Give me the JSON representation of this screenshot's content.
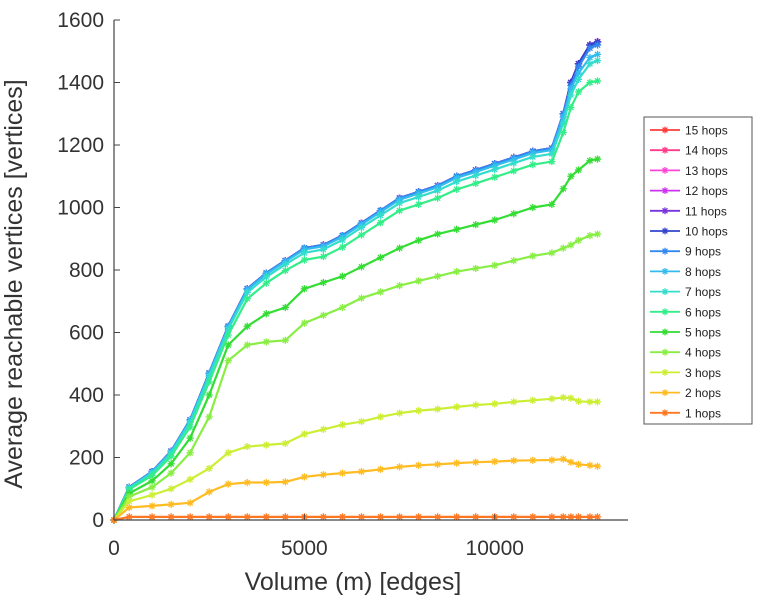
{
  "chart_data": {
    "type": "line",
    "title": "",
    "xlabel": "Volume (m) [edges]",
    "ylabel": "Average reachable vertices [vertices]",
    "xlim": [
      0,
      13500
    ],
    "ylim": [
      0,
      1600
    ],
    "xticks": [
      0,
      5000,
      10000
    ],
    "yticks": [
      0,
      200,
      400,
      600,
      800,
      1000,
      1200,
      1400,
      1600
    ],
    "grid": false,
    "legend_position": "right",
    "x": [
      0,
      400,
      1000,
      1500,
      2000,
      2500,
      3000,
      3500,
      4000,
      4500,
      5000,
      5500,
      6000,
      6500,
      7000,
      7500,
      8000,
      8500,
      9000,
      9500,
      10000,
      10500,
      11000,
      11500,
      11800,
      12000,
      12200,
      12500,
      12700
    ],
    "series": [
      {
        "name": "15 hops",
        "color": "#ff3b3b",
        "values": [
          0,
          105,
          155,
          220,
          320,
          470,
          620,
          740,
          790,
          830,
          870,
          880,
          910,
          950,
          990,
          1030,
          1050,
          1070,
          1100,
          1120,
          1140,
          1160,
          1180,
          1190,
          1300,
          1400,
          1460,
          1520,
          1530
        ]
      },
      {
        "name": "14 hops",
        "color": "#ff3a8a",
        "values": [
          0,
          105,
          155,
          220,
          320,
          470,
          620,
          740,
          790,
          830,
          870,
          880,
          910,
          950,
          990,
          1030,
          1050,
          1070,
          1100,
          1120,
          1140,
          1160,
          1180,
          1190,
          1300,
          1400,
          1460,
          1520,
          1530
        ]
      },
      {
        "name": "13 hops",
        "color": "#ff44d8",
        "values": [
          0,
          105,
          155,
          220,
          320,
          470,
          620,
          740,
          790,
          830,
          870,
          880,
          910,
          950,
          990,
          1030,
          1050,
          1070,
          1100,
          1120,
          1140,
          1160,
          1180,
          1190,
          1300,
          1400,
          1460,
          1520,
          1530
        ]
      },
      {
        "name": "12 hops",
        "color": "#cc33ee",
        "values": [
          0,
          105,
          155,
          220,
          320,
          470,
          620,
          740,
          790,
          830,
          870,
          880,
          910,
          950,
          990,
          1030,
          1050,
          1070,
          1100,
          1120,
          1140,
          1160,
          1180,
          1190,
          1300,
          1400,
          1460,
          1520,
          1530
        ]
      },
      {
        "name": "11 hops",
        "color": "#7733dd",
        "values": [
          0,
          105,
          155,
          220,
          320,
          470,
          620,
          740,
          790,
          830,
          870,
          880,
          910,
          950,
          990,
          1030,
          1050,
          1070,
          1100,
          1120,
          1140,
          1160,
          1180,
          1190,
          1300,
          1400,
          1460,
          1520,
          1530
        ]
      },
      {
        "name": "10 hops",
        "color": "#3344cc",
        "values": [
          0,
          105,
          155,
          220,
          320,
          470,
          620,
          740,
          790,
          830,
          870,
          880,
          910,
          950,
          990,
          1030,
          1050,
          1070,
          1100,
          1120,
          1140,
          1160,
          1180,
          1190,
          1300,
          1400,
          1460,
          1520,
          1530
        ]
      },
      {
        "name": "9 hops",
        "color": "#3388ee",
        "values": [
          0,
          105,
          155,
          220,
          320,
          470,
          620,
          740,
          790,
          830,
          870,
          880,
          910,
          950,
          990,
          1030,
          1050,
          1070,
          1100,
          1120,
          1140,
          1160,
          1180,
          1190,
          1300,
          1390,
          1450,
          1510,
          1520
        ]
      },
      {
        "name": "8 hops",
        "color": "#33bbee",
        "values": [
          0,
          104,
          153,
          218,
          318,
          467,
          617,
          737,
          787,
          827,
          866,
          876,
          906,
          946,
          986,
          1025,
          1045,
          1065,
          1095,
          1114,
          1134,
          1154,
          1174,
          1184,
          1290,
          1380,
          1430,
          1480,
          1490
        ]
      },
      {
        "name": "7 hops",
        "color": "#33ddcc",
        "values": [
          0,
          102,
          150,
          214,
          312,
          460,
          610,
          728,
          778,
          818,
          855,
          866,
          896,
          936,
          975,
          1014,
          1034,
          1054,
          1083,
          1102,
          1122,
          1142,
          1162,
          1172,
          1270,
          1360,
          1410,
          1460,
          1470
        ]
      },
      {
        "name": "6 hops",
        "color": "#33ee88",
        "values": [
          0,
          98,
          142,
          204,
          298,
          442,
          592,
          708,
          758,
          798,
          832,
          843,
          873,
          912,
          951,
          990,
          1010,
          1030,
          1058,
          1077,
          1097,
          1117,
          1137,
          1147,
          1240,
          1320,
          1370,
          1400,
          1405
        ]
      },
      {
        "name": "5 hops",
        "color": "#33dd33",
        "values": [
          0,
          85,
          125,
          180,
          262,
          400,
          560,
          620,
          660,
          680,
          740,
          760,
          780,
          810,
          840,
          870,
          895,
          915,
          930,
          945,
          960,
          980,
          1000,
          1010,
          1060,
          1100,
          1120,
          1150,
          1155
        ]
      },
      {
        "name": "4 hops",
        "color": "#88ee44",
        "values": [
          0,
          75,
          105,
          150,
          215,
          330,
          510,
          560,
          570,
          575,
          630,
          655,
          680,
          710,
          730,
          750,
          765,
          780,
          795,
          805,
          815,
          830,
          845,
          855,
          870,
          880,
          895,
          910,
          915
        ]
      },
      {
        "name": "3 hops",
        "color": "#ccee33",
        "values": [
          0,
          60,
          80,
          100,
          130,
          165,
          215,
          235,
          240,
          245,
          275,
          290,
          305,
          315,
          330,
          342,
          350,
          355,
          362,
          368,
          372,
          378,
          383,
          388,
          392,
          390,
          380,
          378,
          378
        ]
      },
      {
        "name": "2 hops",
        "color": "#ffbb22",
        "values": [
          0,
          40,
          45,
          50,
          55,
          90,
          115,
          120,
          120,
          122,
          138,
          145,
          150,
          155,
          162,
          170,
          175,
          178,
          182,
          185,
          187,
          190,
          191,
          192,
          195,
          185,
          178,
          175,
          172
        ]
      },
      {
        "name": "1 hops",
        "color": "#ff7722",
        "values": [
          0,
          10,
          10,
          10,
          10,
          10,
          10,
          10,
          10,
          10,
          10,
          10,
          10,
          10,
          10,
          10,
          10,
          10,
          10,
          10,
          10,
          10,
          10,
          10,
          10,
          10,
          10,
          10,
          10
        ]
      }
    ]
  }
}
